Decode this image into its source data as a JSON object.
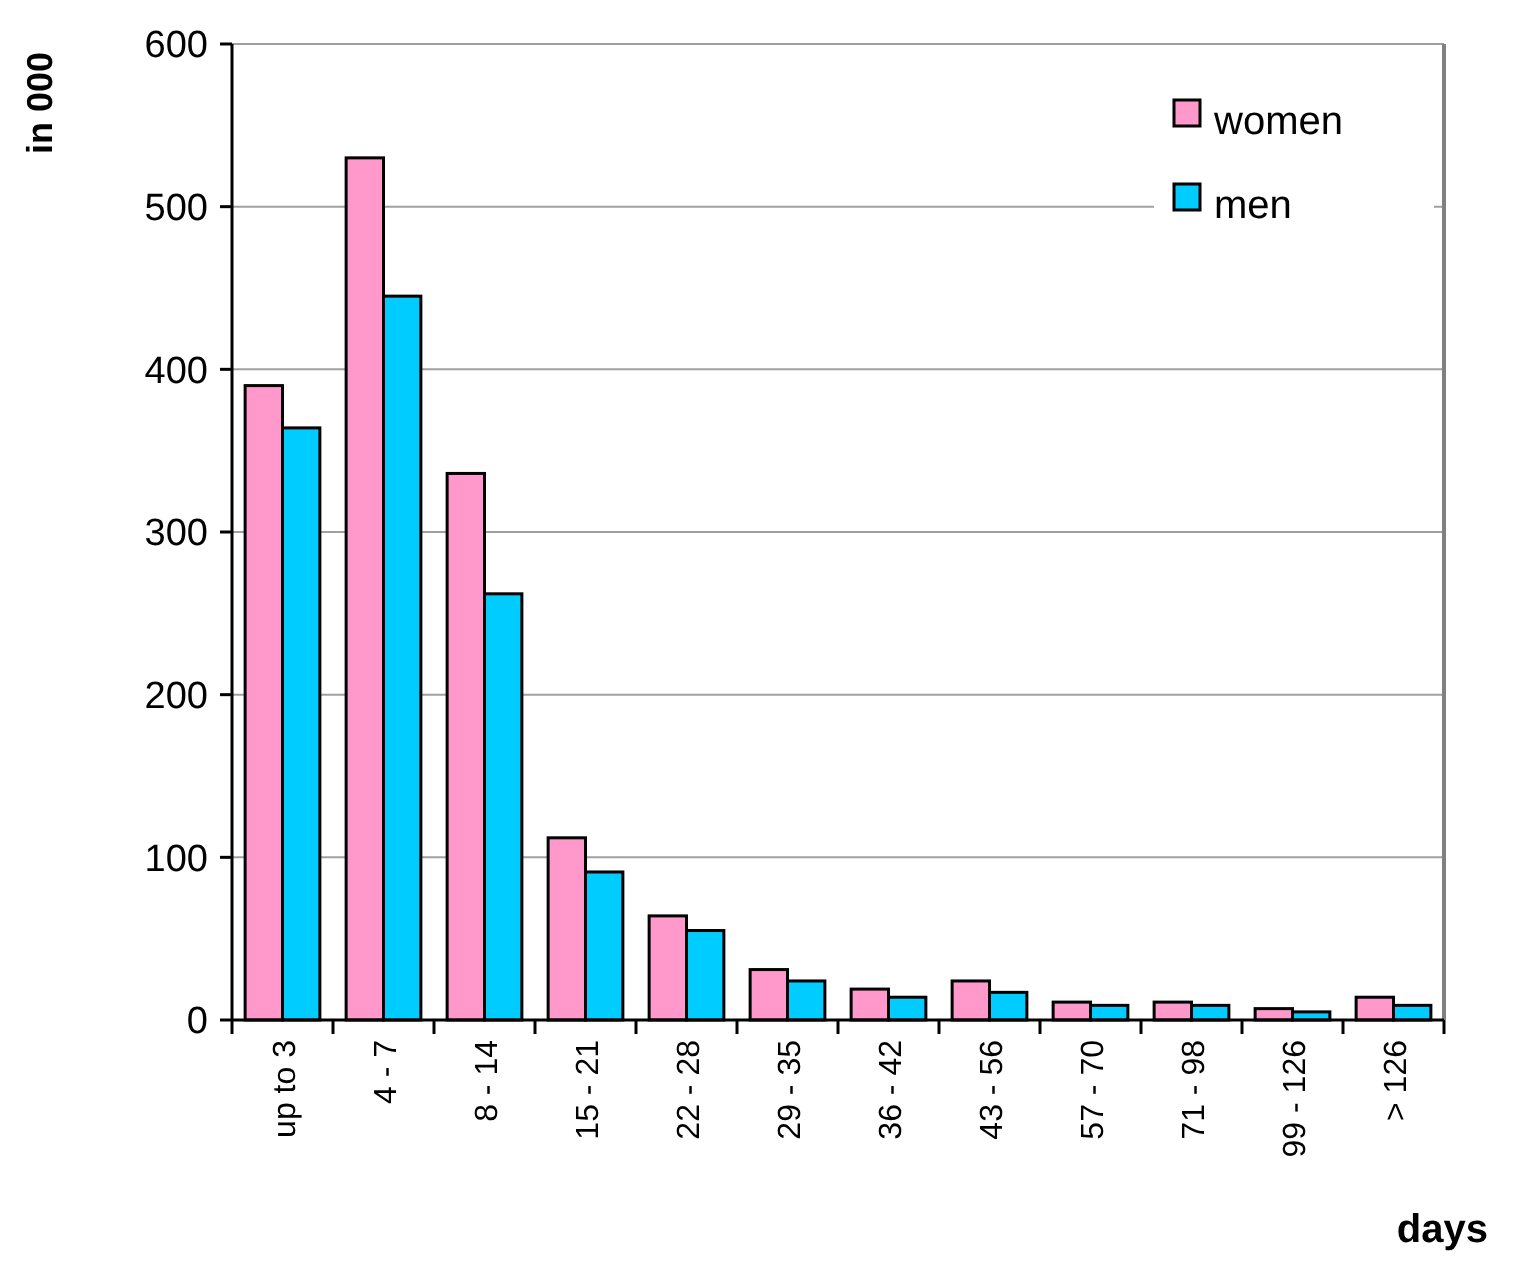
{
  "chart_data": {
    "type": "bar",
    "xlabel": "days",
    "ylabel": "in 000",
    "categories": [
      "up to 3",
      "4 - 7",
      "8 - 14",
      "15 - 21",
      "22 - 28",
      "29 - 35",
      "36 - 42",
      "43 - 56",
      "57 - 70",
      "71 - 98",
      "99 - 126",
      "> 126"
    ],
    "series": [
      {
        "name": "women",
        "color": "#ff99cc",
        "values": [
          390,
          530,
          336,
          112,
          64,
          31,
          19,
          24,
          11,
          11,
          7,
          14
        ]
      },
      {
        "name": "men",
        "color": "#00ccff",
        "values": [
          364,
          445,
          262,
          91,
          55,
          24,
          14,
          17,
          9,
          9,
          5,
          9
        ]
      }
    ],
    "ylim": [
      0,
      600
    ],
    "yticks": [
      0,
      100,
      200,
      300,
      400,
      500,
      600
    ],
    "grid": "y",
    "legend": "top right"
  }
}
